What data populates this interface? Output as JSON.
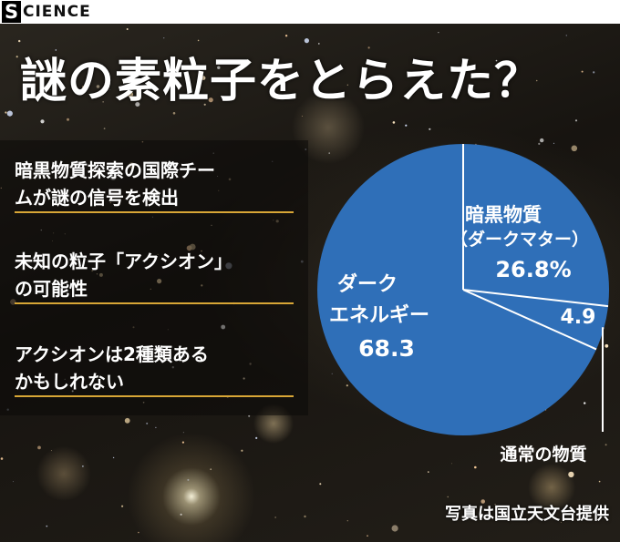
{
  "header": {
    "logo_letter": "S",
    "section_label": "CIENCE"
  },
  "title": "謎の素粒子をとらえた？",
  "points": [
    {
      "lines": [
        "暗黒物質探索の国際チー",
        "ムが謎の信号を検出"
      ]
    },
    {
      "lines": [
        "未知の粒子「アクシオン」",
        "の可能性"
      ]
    },
    {
      "lines": [
        "アクシオンは2種類ある",
        "かもしれない"
      ]
    }
  ],
  "chart_data": {
    "type": "pie",
    "slices": [
      {
        "label_lines": [
          "ダーク",
          "エネルギー"
        ],
        "value": 68.3,
        "value_text": "68.3"
      },
      {
        "label_lines": [
          "暗黒物質",
          "（ダークマター）"
        ],
        "value": 26.8,
        "value_text": "26.8%"
      },
      {
        "label_lines": [
          "通常の物質"
        ],
        "value": 4.9,
        "value_text": "4.9"
      }
    ],
    "colors": {
      "fill": "#2f6fb8",
      "divider": "#ffffff"
    }
  },
  "credit": "写真は国立天文台提供"
}
